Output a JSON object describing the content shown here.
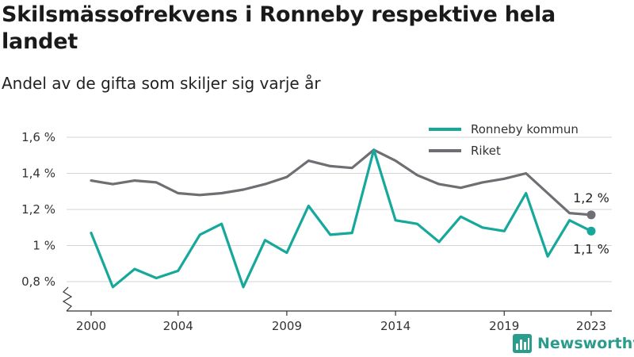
{
  "title": "Skilsmässofrekvens i Ronneby respektive hela landet",
  "subtitle": "Andel av de gifta som skiljer sig varje år",
  "brand": {
    "name": "Newsworthy",
    "icon": "bar-chart-logo-icon"
  },
  "colors": {
    "ronneby": "#16a89a",
    "riket": "#6e6e73",
    "axis": "#333333",
    "grid": "#d6d6d6"
  },
  "chart_data": {
    "type": "line",
    "x": [
      2000,
      2001,
      2002,
      2003,
      2004,
      2005,
      2006,
      2007,
      2008,
      2009,
      2010,
      2011,
      2012,
      2013,
      2014,
      2015,
      2016,
      2017,
      2018,
      2019,
      2020,
      2021,
      2022,
      2023
    ],
    "x_ticks": [
      2000,
      2004,
      2009,
      2014,
      2019,
      2023
    ],
    "x_tick_labels": [
      "2000",
      "2004",
      "2009",
      "2014",
      "2019",
      "2023"
    ],
    "y_ticks": [
      0.8,
      1.0,
      1.2,
      1.4,
      1.6
    ],
    "y_tick_labels": [
      "0,8 %",
      "1 %",
      "1,2 %",
      "1,4 %",
      "1,6 %"
    ],
    "ylim": [
      0.8,
      1.6
    ],
    "y_axis_break": true,
    "grid": "horizontal",
    "legend": "top-right",
    "series": [
      {
        "name": "Ronneby kommun",
        "values": [
          1.07,
          0.77,
          0.87,
          0.82,
          0.86,
          1.06,
          1.12,
          0.77,
          1.03,
          0.96,
          1.22,
          1.06,
          1.07,
          1.53,
          1.14,
          1.12,
          1.02,
          1.16,
          1.1,
          1.08,
          1.29,
          0.94,
          1.14,
          1.08
        ],
        "end_label": "1,1 %"
      },
      {
        "name": "Riket",
        "values": [
          1.36,
          1.34,
          1.36,
          1.35,
          1.29,
          1.28,
          1.29,
          1.31,
          1.34,
          1.38,
          1.47,
          1.44,
          1.43,
          1.53,
          1.47,
          1.39,
          1.34,
          1.32,
          1.35,
          1.37,
          1.4,
          1.29,
          1.18,
          1.17
        ],
        "end_label": "1,2 %"
      }
    ]
  }
}
